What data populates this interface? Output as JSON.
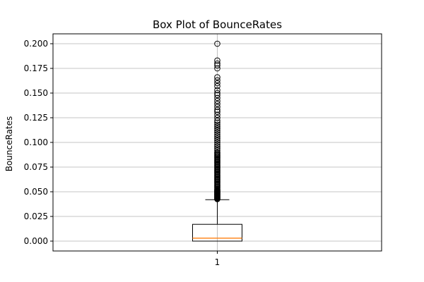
{
  "chart_data": {
    "type": "box",
    "title": "Box Plot of BounceRates",
    "xlabel": "",
    "ylabel": "BounceRates",
    "categories": [
      "1"
    ],
    "ylim": [
      -0.01,
      0.21
    ],
    "yticks": [
      0.0,
      0.025,
      0.05,
      0.075,
      0.1,
      0.125,
      0.15,
      0.175,
      0.2
    ],
    "ytick_labels": [
      "0.000",
      "0.025",
      "0.050",
      "0.075",
      "0.100",
      "0.125",
      "0.150",
      "0.175",
      "0.200"
    ],
    "grid": true,
    "box": {
      "whisker_low": 0.0,
      "q1": 0.0,
      "median": 0.003,
      "q3": 0.017,
      "whisker_high": 0.042
    },
    "outliers": [
      0.0425,
      0.043,
      0.0435,
      0.044,
      0.0445,
      0.045,
      0.0455,
      0.046,
      0.0465,
      0.047,
      0.0475,
      0.048,
      0.0485,
      0.049,
      0.0495,
      0.05,
      0.0505,
      0.051,
      0.0515,
      0.052,
      0.053,
      0.054,
      0.055,
      0.056,
      0.057,
      0.058,
      0.059,
      0.06,
      0.061,
      0.062,
      0.063,
      0.064,
      0.065,
      0.066,
      0.067,
      0.068,
      0.069,
      0.07,
      0.071,
      0.072,
      0.073,
      0.074,
      0.075,
      0.076,
      0.077,
      0.078,
      0.079,
      0.08,
      0.081,
      0.082,
      0.083,
      0.084,
      0.085,
      0.086,
      0.087,
      0.088,
      0.089,
      0.09,
      0.092,
      0.094,
      0.096,
      0.098,
      0.1,
      0.102,
      0.104,
      0.106,
      0.108,
      0.11,
      0.112,
      0.114,
      0.116,
      0.118,
      0.12,
      0.122,
      0.125,
      0.128,
      0.131,
      0.133,
      0.136,
      0.139,
      0.142,
      0.145,
      0.148,
      0.15,
      0.153,
      0.157,
      0.16,
      0.163,
      0.166,
      0.175,
      0.178,
      0.18,
      0.183,
      0.2
    ]
  }
}
